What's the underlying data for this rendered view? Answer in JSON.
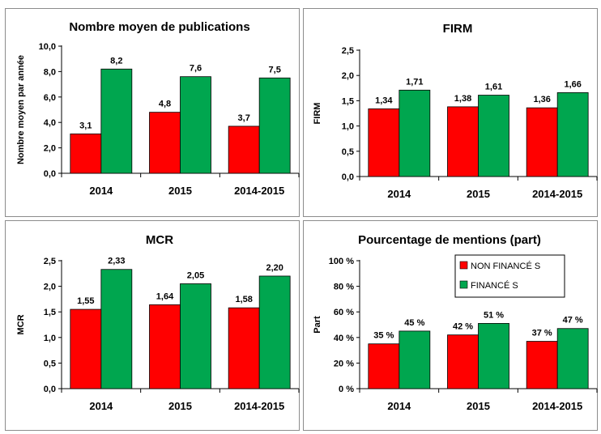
{
  "colors": {
    "red": "#ff0000",
    "green": "#00a64f"
  },
  "chart_data": [
    {
      "type": "bar",
      "title": "Nombre moyen  de publications",
      "ylabel": "Nombre moyen par année",
      "categories": [
        "2014",
        "2015",
        "2014-2015"
      ],
      "series": [
        {
          "values": [
            3.1,
            4.8,
            3.7
          ],
          "labels": [
            "3,1",
            "4,8",
            "3,7"
          ],
          "color": "#ff0000"
        },
        {
          "values": [
            8.2,
            7.6,
            7.5
          ],
          "labels": [
            "8,2",
            "7,6",
            "7,5"
          ],
          "color": "#00a64f"
        }
      ],
      "ylim": [
        0,
        10
      ],
      "yticks": [
        0,
        2,
        4,
        6,
        8,
        10
      ],
      "ytick_labels": [
        "0,0",
        "2,0",
        "4,0",
        "6,0",
        "8,0",
        "10,0"
      ],
      "grid": false
    },
    {
      "type": "bar",
      "title": "FIRM",
      "ylabel": "FIRM",
      "categories": [
        "2014",
        "2015",
        "2014-2015"
      ],
      "series": [
        {
          "values": [
            1.34,
            1.38,
            1.36
          ],
          "labels": [
            "1,34",
            "1,38",
            "1,36"
          ],
          "color": "#ff0000"
        },
        {
          "values": [
            1.71,
            1.61,
            1.66
          ],
          "labels": [
            "1,71",
            "1,61",
            "1,66"
          ],
          "color": "#00a64f"
        }
      ],
      "ylim": [
        0,
        2.5
      ],
      "yticks": [
        0,
        0.5,
        1,
        1.5,
        2,
        2.5
      ],
      "ytick_labels": [
        "0,0",
        "0,5",
        "1,0",
        "1,5",
        "2,0",
        "2,5"
      ],
      "grid": false
    },
    {
      "type": "bar",
      "title": "MCR",
      "ylabel": "MCR",
      "categories": [
        "2014",
        "2015",
        "2014-2015"
      ],
      "series": [
        {
          "values": [
            1.55,
            1.64,
            1.58
          ],
          "labels": [
            "1,55",
            "1,64",
            "1,58"
          ],
          "color": "#ff0000"
        },
        {
          "values": [
            2.33,
            2.05,
            2.2
          ],
          "labels": [
            "2,33",
            "2,05",
            "2,20"
          ],
          "color": "#00a64f"
        }
      ],
      "ylim": [
        0,
        2.5
      ],
      "yticks": [
        0,
        0.5,
        1,
        1.5,
        2,
        2.5
      ],
      "ytick_labels": [
        "0,0",
        "0,5",
        "1,0",
        "1,5",
        "2,0",
        "2,5"
      ],
      "grid": false
    },
    {
      "type": "bar",
      "title": "Pourcentage de mentions (part)",
      "ylabel": "Part",
      "categories": [
        "2014",
        "2015",
        "2014-2015"
      ],
      "series": [
        {
          "name": "NON FINANCÉ S",
          "values": [
            35,
            42,
            37
          ],
          "labels": [
            "35 %",
            "42 %",
            "37 %"
          ],
          "color": "#ff0000"
        },
        {
          "name": "FINANCÉ S",
          "values": [
            45,
            51,
            47
          ],
          "labels": [
            "45 %",
            "51 %",
            "47 %"
          ],
          "color": "#00a64f"
        }
      ],
      "ylim": [
        0,
        100
      ],
      "yticks": [
        0,
        20,
        40,
        60,
        80,
        100
      ],
      "ytick_labels": [
        "0 %",
        "20 %",
        "40 %",
        "60 %",
        "80 %",
        "100 %"
      ],
      "legend": "top-right",
      "grid": false
    }
  ]
}
